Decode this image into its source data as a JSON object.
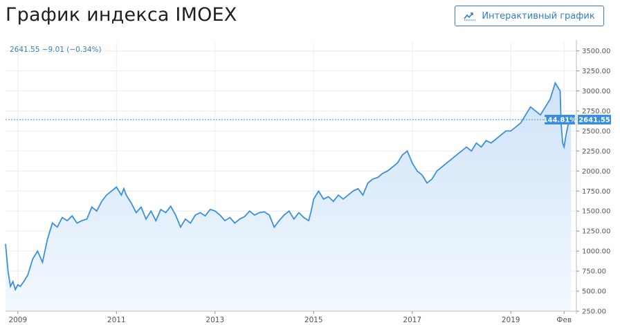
{
  "page": {
    "title": "График индекса IMOEX",
    "interactive_button_label": "Интерактивный график"
  },
  "colors": {
    "line": "#3a8fdc",
    "area_top": "#cfe3f8",
    "area_bottom": "#f2f8fe",
    "accent": "#2e7fc4",
    "grid": "#ececec",
    "tag": "#3a8fdc"
  },
  "chart_data": {
    "type": "area",
    "series": [
      {
        "name": ""
      }
    ],
    "legend_text": "2641.55  −9.01 (−0.34%)",
    "last_value_label": "2641.55",
    "change_percent_label": "144.81%",
    "last_value": 2641.55,
    "x_ticks": [
      "2009",
      "2011",
      "2013",
      "2015",
      "2017",
      "2019",
      "Фев"
    ],
    "y_ticks": [
      "250.00",
      "500.00",
      "750.00",
      "1000.00",
      "1250.00",
      "1500.00",
      "1750.00",
      "2000.00",
      "2250.00",
      "2500.00",
      "2750.00",
      "3000.00",
      "3250.00",
      "3500.00"
    ],
    "ylim": [
      250,
      3600
    ],
    "xlim": [
      2008.75,
      2020.33
    ],
    "grid": true,
    "x": [
      2008.75,
      2008.8,
      2008.85,
      2008.9,
      2008.95,
      2009.0,
      2009.05,
      2009.12,
      2009.2,
      2009.3,
      2009.4,
      2009.5,
      2009.6,
      2009.7,
      2009.8,
      2009.9,
      2010.0,
      2010.1,
      2010.2,
      2010.3,
      2010.4,
      2010.5,
      2010.6,
      2010.7,
      2010.8,
      2010.9,
      2011.0,
      2011.1,
      2011.15,
      2011.2,
      2011.3,
      2011.4,
      2011.5,
      2011.6,
      2011.65,
      2011.7,
      2011.8,
      2011.9,
      2012.0,
      2012.1,
      2012.2,
      2012.3,
      2012.4,
      2012.5,
      2012.6,
      2012.7,
      2012.8,
      2012.9,
      2013.0,
      2013.1,
      2013.2,
      2013.3,
      2013.4,
      2013.5,
      2013.6,
      2013.7,
      2013.8,
      2013.9,
      2014.0,
      2014.1,
      2014.2,
      2014.3,
      2014.4,
      2014.5,
      2014.6,
      2014.7,
      2014.8,
      2014.9,
      2014.95,
      2015.0,
      2015.1,
      2015.2,
      2015.3,
      2015.4,
      2015.5,
      2015.6,
      2015.7,
      2015.8,
      2015.9,
      2016.0,
      2016.1,
      2016.2,
      2016.3,
      2016.4,
      2016.5,
      2016.6,
      2016.7,
      2016.8,
      2016.9,
      2017.0,
      2017.1,
      2017.2,
      2017.3,
      2017.4,
      2017.5,
      2017.6,
      2017.7,
      2017.8,
      2017.9,
      2018.0,
      2018.1,
      2018.2,
      2018.3,
      2018.4,
      2018.5,
      2018.6,
      2018.7,
      2018.8,
      2018.9,
      2019.0,
      2019.1,
      2019.2,
      2019.3,
      2019.4,
      2019.5,
      2019.6,
      2019.7,
      2019.8,
      2019.9,
      2019.95,
      2020.0,
      2020.02,
      2020.05,
      2020.08,
      2020.12,
      2020.17,
      2020.22
    ],
    "values": [
      1090,
      750,
      560,
      620,
      520,
      580,
      560,
      620,
      700,
      900,
      1000,
      860,
      1150,
      1350,
      1300,
      1420,
      1380,
      1440,
      1350,
      1380,
      1400,
      1550,
      1500,
      1620,
      1700,
      1750,
      1800,
      1700,
      1780,
      1700,
      1600,
      1480,
      1550,
      1400,
      1450,
      1500,
      1380,
      1520,
      1480,
      1560,
      1450,
      1300,
      1400,
      1350,
      1450,
      1480,
      1440,
      1520,
      1500,
      1450,
      1380,
      1420,
      1350,
      1400,
      1430,
      1500,
      1450,
      1480,
      1490,
      1450,
      1300,
      1380,
      1450,
      1500,
      1400,
      1480,
      1420,
      1380,
      1500,
      1650,
      1750,
      1650,
      1680,
      1620,
      1700,
      1650,
      1700,
      1750,
      1780,
      1700,
      1850,
      1900,
      1920,
      1970,
      2000,
      2050,
      2100,
      2200,
      2250,
      2100,
      2000,
      1950,
      1850,
      1900,
      2000,
      2050,
      2100,
      2150,
      2200,
      2250,
      2300,
      2250,
      2350,
      2300,
      2380,
      2350,
      2400,
      2450,
      2500,
      2500,
      2550,
      2600,
      2700,
      2800,
      2750,
      2700,
      2800,
      2900,
      3100,
      3050,
      3000,
      2600,
      2350,
      2300,
      2450,
      2600,
      2641.55
    ]
  }
}
